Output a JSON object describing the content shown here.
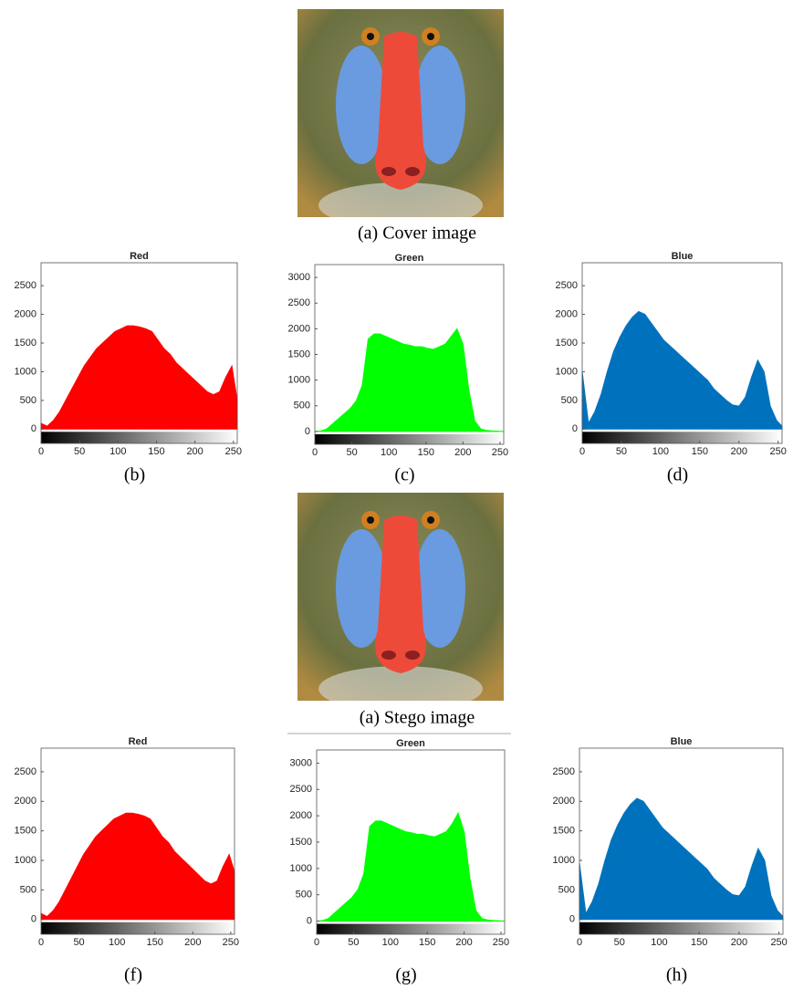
{
  "images": [
    {
      "caption": "(a)  Cover image"
    },
    {
      "caption": "(a)  Stego image"
    }
  ],
  "chart_data": [
    {
      "type": "area",
      "title": "Red",
      "caption": "(b)",
      "color": "#ff0000",
      "x": [
        0,
        8,
        16,
        24,
        32,
        40,
        48,
        56,
        64,
        72,
        80,
        88,
        96,
        104,
        112,
        120,
        128,
        136,
        144,
        152,
        160,
        168,
        176,
        184,
        192,
        200,
        208,
        216,
        224,
        232,
        240,
        248,
        255
      ],
      "values": [
        100,
        50,
        150,
        300,
        500,
        700,
        900,
        1100,
        1250,
        1400,
        1500,
        1600,
        1700,
        1750,
        1800,
        1800,
        1780,
        1750,
        1700,
        1550,
        1400,
        1300,
        1150,
        1050,
        950,
        850,
        750,
        650,
        600,
        650,
        900,
        1100,
        500
      ],
      "xlim": [
        0,
        255
      ],
      "xticks": [
        0,
        50,
        100,
        150,
        200,
        250
      ],
      "ylim": [
        -250,
        2900
      ],
      "yticks": [
        0,
        500,
        1000,
        1500,
        2000,
        2500
      ]
    },
    {
      "type": "area",
      "title": "Green",
      "caption": "(c)",
      "color": "#00ff00",
      "x": [
        0,
        8,
        16,
        24,
        32,
        40,
        48,
        56,
        64,
        72,
        80,
        88,
        96,
        104,
        112,
        120,
        128,
        136,
        144,
        152,
        160,
        168,
        176,
        184,
        192,
        200,
        208,
        216,
        224,
        232,
        240,
        248,
        255
      ],
      "values": [
        0,
        10,
        50,
        150,
        250,
        350,
        450,
        600,
        900,
        1800,
        1900,
        1900,
        1850,
        1800,
        1750,
        1700,
        1680,
        1650,
        1650,
        1620,
        1600,
        1650,
        1700,
        1850,
        2000,
        1700,
        800,
        200,
        50,
        20,
        10,
        5,
        0
      ],
      "xlim": [
        0,
        255
      ],
      "xticks": [
        0,
        50,
        100,
        150,
        200,
        250
      ],
      "ylim": [
        -250,
        3250
      ],
      "yticks": [
        0,
        500,
        1000,
        1500,
        2000,
        2500,
        3000
      ]
    },
    {
      "type": "area",
      "title": "Blue",
      "caption": "(d)",
      "color": "#0072bd",
      "x": [
        0,
        8,
        16,
        24,
        32,
        40,
        48,
        56,
        64,
        72,
        80,
        88,
        96,
        104,
        112,
        120,
        128,
        136,
        144,
        152,
        160,
        168,
        176,
        184,
        192,
        200,
        208,
        216,
        224,
        232,
        240,
        248,
        255
      ],
      "values": [
        1000,
        100,
        300,
        600,
        1000,
        1350,
        1600,
        1800,
        1950,
        2050,
        2000,
        1850,
        1700,
        1550,
        1450,
        1350,
        1250,
        1150,
        1050,
        950,
        850,
        700,
        600,
        500,
        420,
        400,
        550,
        900,
        1200,
        1000,
        400,
        150,
        50
      ],
      "xlim": [
        0,
        255
      ],
      "xticks": [
        0,
        50,
        100,
        150,
        200,
        250
      ],
      "ylim": [
        -250,
        2900
      ],
      "yticks": [
        0,
        500,
        1000,
        1500,
        2000,
        2500
      ]
    },
    {
      "type": "area",
      "title": "Red",
      "caption": "(f)",
      "color": "#ff0000",
      "x": [
        0,
        8,
        16,
        24,
        32,
        40,
        48,
        56,
        64,
        72,
        80,
        88,
        96,
        104,
        112,
        120,
        128,
        136,
        144,
        152,
        160,
        168,
        176,
        184,
        192,
        200,
        208,
        216,
        224,
        232,
        240,
        248,
        255
      ],
      "values": [
        100,
        50,
        150,
        300,
        500,
        700,
        900,
        1100,
        1250,
        1400,
        1500,
        1600,
        1700,
        1750,
        1800,
        1800,
        1780,
        1750,
        1700,
        1550,
        1400,
        1300,
        1150,
        1050,
        950,
        850,
        750,
        650,
        600,
        650,
        900,
        1100,
        800
      ],
      "xlim": [
        0,
        255
      ],
      "xticks": [
        0,
        50,
        100,
        150,
        200,
        250
      ],
      "ylim": [
        -250,
        2900
      ],
      "yticks": [
        0,
        500,
        1000,
        1500,
        2000,
        2500
      ]
    },
    {
      "type": "area",
      "title": "Green",
      "caption": "(g)",
      "color": "#00ff00",
      "x": [
        0,
        8,
        16,
        24,
        32,
        40,
        48,
        56,
        64,
        72,
        80,
        88,
        96,
        104,
        112,
        120,
        128,
        136,
        144,
        152,
        160,
        168,
        176,
        184,
        192,
        200,
        208,
        216,
        224,
        232,
        240,
        248,
        255
      ],
      "values": [
        0,
        10,
        50,
        150,
        250,
        350,
        450,
        600,
        900,
        1800,
        1900,
        1900,
        1850,
        1800,
        1750,
        1700,
        1680,
        1650,
        1650,
        1620,
        1600,
        1650,
        1700,
        1850,
        2050,
        1700,
        800,
        200,
        50,
        20,
        10,
        5,
        0
      ],
      "xlim": [
        0,
        255
      ],
      "xticks": [
        0,
        50,
        100,
        150,
        200,
        250
      ],
      "ylim": [
        -250,
        3250
      ],
      "yticks": [
        0,
        500,
        1000,
        1500,
        2000,
        2500,
        3000
      ]
    },
    {
      "type": "area",
      "title": "Blue",
      "caption": "(h)",
      "color": "#0072bd",
      "x": [
        0,
        8,
        16,
        24,
        32,
        40,
        48,
        56,
        64,
        72,
        80,
        88,
        96,
        104,
        112,
        120,
        128,
        136,
        144,
        152,
        160,
        168,
        176,
        184,
        192,
        200,
        208,
        216,
        224,
        232,
        240,
        248,
        255
      ],
      "values": [
        950,
        100,
        300,
        600,
        1000,
        1350,
        1600,
        1800,
        1950,
        2050,
        2000,
        1850,
        1700,
        1550,
        1450,
        1350,
        1250,
        1150,
        1050,
        950,
        850,
        700,
        600,
        500,
        420,
        400,
        550,
        900,
        1200,
        1000,
        400,
        150,
        50
      ],
      "xlim": [
        0,
        255
      ],
      "xticks": [
        0,
        50,
        100,
        150,
        200,
        250
      ],
      "ylim": [
        -250,
        2900
      ],
      "yticks": [
        0,
        500,
        1000,
        1500,
        2000,
        2500
      ]
    }
  ]
}
